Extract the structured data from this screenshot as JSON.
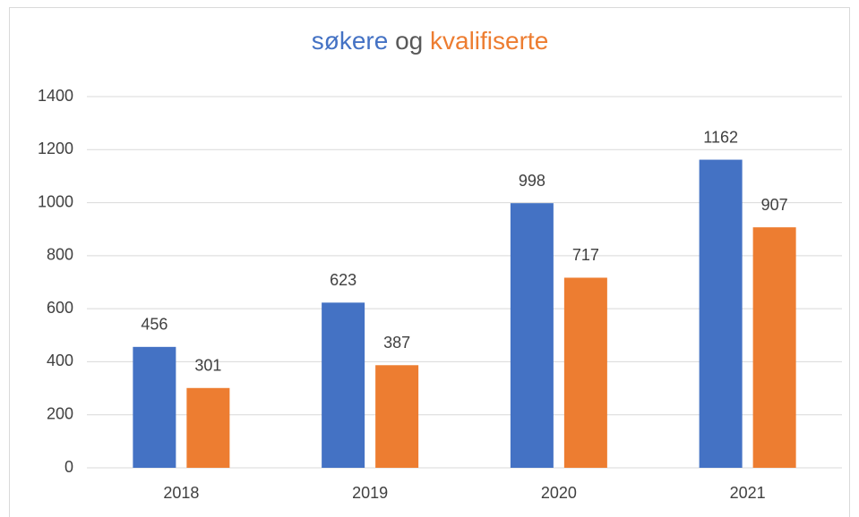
{
  "chart_data": {
    "type": "bar",
    "title_parts": [
      {
        "text": "søkere",
        "color": "#4472c4"
      },
      {
        "text": "og",
        "color": "#595959"
      },
      {
        "text": "kvalifiserte",
        "color": "#ed7d31"
      }
    ],
    "categories": [
      "2018",
      "2019",
      "2020",
      "2021"
    ],
    "series": [
      {
        "color": "#4472c4",
        "values": [
          456,
          623,
          998,
          1162
        ]
      },
      {
        "color": "#ed7d31",
        "values": [
          301,
          387,
          717,
          907
        ]
      }
    ],
    "ylim": [
      0,
      1400
    ],
    "yticks": [
      0,
      200,
      400,
      600,
      800,
      1000,
      1200,
      1400
    ],
    "grid": true
  }
}
